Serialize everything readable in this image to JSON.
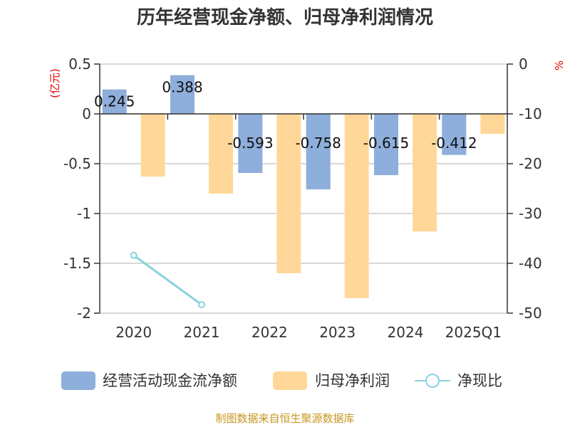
{
  "chart_data": {
    "type": "bar",
    "title": "历年经营现金净额、归母净利润情况",
    "categories": [
      "2020",
      "2021",
      "2022",
      "2023",
      "2024",
      "2025Q1"
    ],
    "left_axis": {
      "unit": "(亿元)",
      "ylim": [
        -2,
        0.5
      ],
      "ticks": [
        "0.5",
        "0",
        "-0.5",
        "-1",
        "-1.5",
        "-2"
      ],
      "tick_values": [
        0.5,
        0,
        -0.5,
        -1,
        -1.5,
        -2
      ]
    },
    "right_axis": {
      "unit": "%",
      "ylim": [
        -50,
        0
      ],
      "ticks": [
        "0",
        "-10",
        "-20",
        "-30",
        "-40",
        "-50"
      ],
      "tick_values": [
        0,
        -10,
        -20,
        -30,
        -40,
        -50
      ]
    },
    "series": [
      {
        "name": "经营活动现金流净额",
        "type": "bar",
        "axis": "left",
        "color": "#8eaedb",
        "values": [
          0.245,
          0.388,
          -0.593,
          -0.758,
          -0.615,
          -0.412
        ],
        "labels": [
          "0.245",
          "0.388",
          "-0.593",
          "-0.758",
          "-0.615",
          "-0.412"
        ]
      },
      {
        "name": "归母净利润",
        "type": "bar",
        "axis": "left",
        "color": "#ffd899",
        "values": [
          -0.63,
          -0.8,
          -1.6,
          -1.85,
          -1.18,
          -0.2
        ]
      },
      {
        "name": "净现比",
        "type": "line",
        "axis": "right",
        "color": "#88d3dc",
        "values": [
          -38.4,
          -48.3,
          null,
          null,
          null,
          null
        ]
      }
    ],
    "grid": true,
    "legend": "bottom"
  },
  "source": "制图数据来自恒生聚源数据库"
}
